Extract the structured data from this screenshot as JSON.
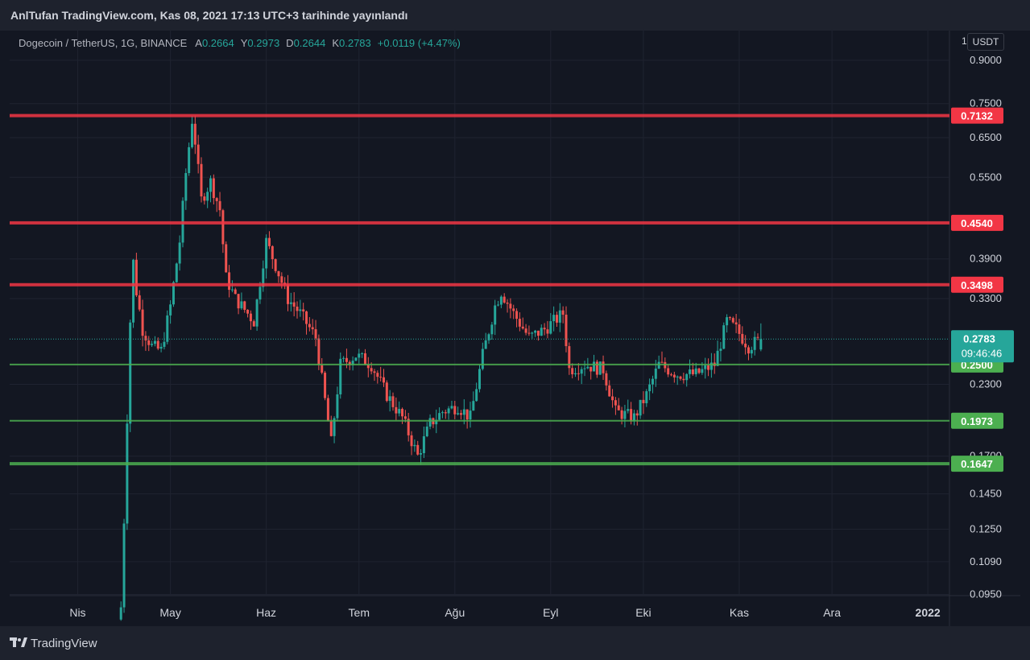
{
  "header": {
    "title": "AnlTufan TradingView.com, Kas 08, 2021 17:13 UTC+3 tarihinde yayınlandı"
  },
  "legend": {
    "symbol": "Dogecoin / TetherUS, 1G, BINANCE",
    "open_label": "A",
    "open": "0.2664",
    "high_label": "Y",
    "high": "0.2973",
    "low_label": "D",
    "low": "0.2644",
    "close_label": "K",
    "close": "0.2783",
    "change": "+0.0119 (+4.47%)"
  },
  "price_axis": {
    "unit_prefix": "1",
    "unit": "USDT",
    "ticks": [
      "0.9000",
      "0.7500",
      "0.6500",
      "0.5500",
      "0.3900",
      "0.3300",
      "0.2300",
      "0.1700",
      "0.1450",
      "0.1250",
      "0.1090",
      "0.0950"
    ]
  },
  "time_axis": {
    "labels": [
      "Nis",
      "May",
      "Haz",
      "Tem",
      "Ağu",
      "Eyl",
      "Eki",
      "Kas",
      "Ara",
      "2022"
    ]
  },
  "levels": {
    "resistance": [
      "0.7132",
      "0.4540",
      "0.3498"
    ],
    "support": [
      "0.2500",
      "0.1973",
      "0.1647"
    ]
  },
  "current_price": {
    "price": "0.2783",
    "countdown": "09:46:46"
  },
  "colors": {
    "background": "#131722",
    "up": "#26a69a",
    "down": "#ef5350",
    "resistance": "#f23645",
    "support": "#4caf50",
    "grid": "#1f2330"
  },
  "footer": {
    "brand": "TradingView",
    "logo_icon": "tradingview-logo-icon"
  },
  "chart_data": {
    "type": "candlestick",
    "title": "Dogecoin / TetherUS, 1G, BINANCE",
    "y_scale": "log",
    "ylim": [
      0.0945,
      1.02
    ],
    "x_range": [
      "2021-03-10",
      "2022-01-08"
    ],
    "x_ticks": [
      "Nis",
      "May",
      "Haz",
      "Tem",
      "Ağu",
      "Eyl",
      "Eki",
      "Kas",
      "Ara",
      "2022"
    ],
    "grid": true,
    "horizontal_lines": [
      {
        "value": 0.7132,
        "kind": "resistance"
      },
      {
        "value": 0.454,
        "kind": "resistance"
      },
      {
        "value": 0.3498,
        "kind": "resistance"
      },
      {
        "value": 0.25,
        "kind": "support"
      },
      {
        "value": 0.1973,
        "kind": "support"
      },
      {
        "value": 0.1647,
        "kind": "support"
      }
    ],
    "price_anchors": [
      [
        "2021-04-15",
        0.09
      ],
      [
        "2021-04-16",
        0.13
      ],
      [
        "2021-04-17",
        0.2
      ],
      [
        "2021-04-18",
        0.3
      ],
      [
        "2021-04-19",
        0.385
      ],
      [
        "2021-04-20",
        0.34
      ],
      [
        "2021-04-22",
        0.29
      ],
      [
        "2021-04-25",
        0.27
      ],
      [
        "2021-04-28",
        0.265
      ],
      [
        "2021-05-01",
        0.32
      ],
      [
        "2021-05-04",
        0.42
      ],
      [
        "2021-05-06",
        0.56
      ],
      [
        "2021-05-08",
        0.7
      ],
      [
        "2021-05-09",
        0.64
      ],
      [
        "2021-05-11",
        0.5
      ],
      [
        "2021-05-14",
        0.54
      ],
      [
        "2021-05-17",
        0.48
      ],
      [
        "2021-05-19",
        0.36
      ],
      [
        "2021-05-22",
        0.33
      ],
      [
        "2021-05-26",
        0.31
      ],
      [
        "2021-05-28",
        0.3
      ],
      [
        "2021-06-01",
        0.42
      ],
      [
        "2021-06-04",
        0.38
      ],
      [
        "2021-06-08",
        0.33
      ],
      [
        "2021-06-12",
        0.31
      ],
      [
        "2021-06-17",
        0.28
      ],
      [
        "2021-06-22",
        0.18
      ],
      [
        "2021-06-25",
        0.25
      ],
      [
        "2021-06-30",
        0.26
      ],
      [
        "2021-07-05",
        0.25
      ],
      [
        "2021-07-10",
        0.22
      ],
      [
        "2021-07-15",
        0.2
      ],
      [
        "2021-07-20",
        0.17
      ],
      [
        "2021-07-24",
        0.195
      ],
      [
        "2021-07-28",
        0.205
      ],
      [
        "2021-08-02",
        0.21
      ],
      [
        "2021-08-06",
        0.2
      ],
      [
        "2021-08-10",
        0.26
      ],
      [
        "2021-08-14",
        0.32
      ],
      [
        "2021-08-16",
        0.34
      ],
      [
        "2021-08-20",
        0.31
      ],
      [
        "2021-08-25",
        0.28
      ],
      [
        "2021-08-30",
        0.29
      ],
      [
        "2021-09-05",
        0.31
      ],
      [
        "2021-09-07",
        0.245
      ],
      [
        "2021-09-12",
        0.25
      ],
      [
        "2021-09-18",
        0.245
      ],
      [
        "2021-09-22",
        0.205
      ],
      [
        "2021-09-28",
        0.2
      ],
      [
        "2021-10-02",
        0.22
      ],
      [
        "2021-10-06",
        0.25
      ],
      [
        "2021-10-12",
        0.24
      ],
      [
        "2021-10-18",
        0.24
      ],
      [
        "2021-10-24",
        0.25
      ],
      [
        "2021-10-28",
        0.3
      ],
      [
        "2021-10-31",
        0.29
      ],
      [
        "2021-11-04",
        0.27
      ],
      [
        "2021-11-08",
        0.2783
      ]
    ]
  }
}
